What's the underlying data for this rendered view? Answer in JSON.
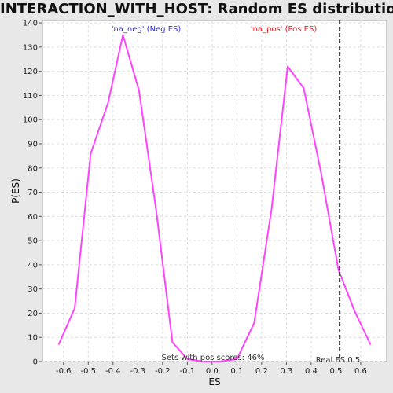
{
  "chart_data": {
    "type": "line",
    "title": "INTERACTION_WITH_HOST: Random ES distribution",
    "xlabel": "ES",
    "ylabel": "P(ES)",
    "xlim": [
      -0.685,
      0.705
    ],
    "ylim": [
      0,
      141
    ],
    "x_ticks": [
      -0.6,
      -0.5,
      -0.4,
      -0.3,
      -0.2,
      -0.1,
      0.0,
      0.1,
      0.2,
      0.3,
      0.4,
      0.5,
      0.6
    ],
    "x_tick_labels": [
      "-0.6",
      "-0.5",
      "-0.4",
      "-0.3",
      "-0.2",
      "-0.1",
      "0.0",
      "0.1",
      "0.2",
      "0.3",
      "0.4",
      "0.5",
      "0.6"
    ],
    "y_ticks": [
      0,
      10,
      20,
      30,
      40,
      50,
      60,
      70,
      80,
      90,
      100,
      110,
      120,
      130,
      140
    ],
    "y_tick_labels": [
      "0",
      "10",
      "20",
      "30",
      "40",
      "50",
      "60",
      "70",
      "80",
      "90",
      "100",
      "110",
      "120",
      "130",
      "140"
    ],
    "grid": true,
    "series": [
      {
        "color": "#ff44ff",
        "x": [
          -0.62,
          -0.555,
          -0.49,
          -0.42,
          -0.36,
          -0.295,
          -0.225,
          -0.16,
          -0.1,
          -0.035,
          0.03,
          0.1,
          0.17,
          0.24,
          0.305,
          0.37,
          0.44,
          0.51,
          0.575,
          0.64
        ],
        "y": [
          7,
          22,
          86,
          107,
          135,
          112,
          62,
          8,
          1,
          0,
          0,
          1,
          16,
          63,
          122,
          113,
          78,
          38,
          21,
          7
        ]
      }
    ],
    "real_es": 0.515,
    "annotations": {
      "neg_label": "'na_neg' (Neg ES)",
      "pos_label": "'na_pos' (Pos ES)",
      "pos_scores": "Sets with pos scores: 46%",
      "real_es_label": "Real ES 0.5"
    },
    "colors": {
      "neg": "#3333cc",
      "pos": "#dd2222",
      "real_es_line": "#333333",
      "grid": "#dddddd",
      "plot_bg": "#ffffff"
    }
  }
}
